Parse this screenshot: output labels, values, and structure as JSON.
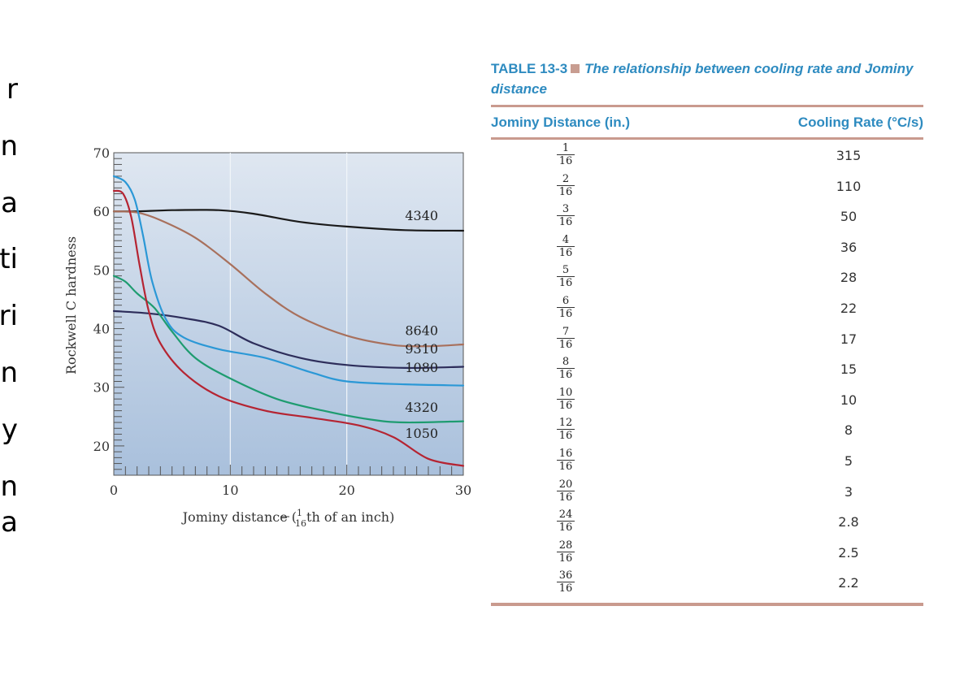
{
  "left_text_fragments": [
    "r",
    "n",
    "a",
    "ti",
    "ri",
    "n",
    "y",
    "n",
    "a"
  ],
  "chart_data": {
    "type": "line",
    "xlabel_prefix": "Jominy distance (",
    "xlabel_frac_num": "1",
    "xlabel_frac_den": "16",
    "xlabel_suffix": "th of an inch)",
    "ylabel": "Rockwell C hardness",
    "xlim": [
      0,
      30
    ],
    "ylim": [
      15,
      70
    ],
    "xticks": [
      0,
      10,
      20,
      30
    ],
    "yticks": [
      20,
      30,
      40,
      50,
      60,
      70
    ],
    "grid": true,
    "series": [
      {
        "name": "4340",
        "color": "#1a1a1a",
        "x": [
          0,
          2,
          5,
          9,
          12,
          16,
          20,
          25,
          30
        ],
        "y": [
          60,
          60,
          60.2,
          60.2,
          59.6,
          58.2,
          57.4,
          56.8,
          56.7
        ]
      },
      {
        "name": "8640",
        "color": "#a8705c",
        "x": [
          0,
          2,
          4,
          7,
          10,
          13,
          16,
          20,
          24,
          27,
          30
        ],
        "y": [
          60,
          59.8,
          58.5,
          55.5,
          51,
          46,
          42,
          38.8,
          37.2,
          37,
          37.3
        ]
      },
      {
        "name": "9310",
        "color": "#2d2d5a",
        "x": [
          0,
          3,
          6,
          9,
          12,
          16,
          20,
          25,
          30
        ],
        "y": [
          43,
          42.6,
          41.8,
          40.5,
          37.5,
          35,
          33.8,
          33.3,
          33.5
        ]
      },
      {
        "name": "1080",
        "color": "#2b98d6",
        "x": [
          0,
          1,
          1.8,
          2.5,
          3.3,
          4.5,
          6,
          9,
          13,
          17,
          20,
          25,
          30
        ],
        "y": [
          66,
          65,
          62,
          56,
          48,
          41.5,
          38.5,
          36.5,
          35,
          32.5,
          31,
          30.5,
          30.3
        ]
      },
      {
        "name": "4320",
        "color": "#1e9c70",
        "x": [
          0,
          1,
          2,
          3.5,
          5,
          7,
          10,
          14,
          18,
          22,
          25,
          30
        ],
        "y": [
          49,
          48,
          46,
          43.5,
          39.5,
          35,
          31.5,
          28,
          26,
          24.5,
          24,
          24.2
        ]
      },
      {
        "name": "1050",
        "color": "#b52432",
        "x": [
          0,
          0.8,
          1.5,
          2.2,
          3,
          4,
          6,
          9,
          13,
          17,
          21,
          24,
          27,
          30
        ],
        "y": [
          63.5,
          63,
          59,
          51,
          43,
          37.5,
          32.5,
          28.5,
          26,
          24.8,
          23.5,
          21.5,
          17.8,
          16.6
        ]
      }
    ],
    "annotations": [
      {
        "text": "4340",
        "x": 25,
        "y": 58.5
      },
      {
        "text": "8640",
        "x": 25,
        "y": 38.9
      },
      {
        "text": "9310",
        "x": 25,
        "y": 35.8
      },
      {
        "text": "1080",
        "x": 25,
        "y": 32.6
      },
      {
        "text": "4320",
        "x": 25,
        "y": 25.8
      },
      {
        "text": "1050",
        "x": 25,
        "y": 21.4
      }
    ]
  },
  "table": {
    "caption_id": "TABLE 13-3",
    "caption_title": "The relationship between cooling rate and Jominy distance",
    "headers": [
      "Jominy Distance (in.)",
      "Cooling Rate (°C/s)"
    ],
    "rows": [
      {
        "num": "1",
        "den": "16",
        "rate": "315"
      },
      {
        "num": "2",
        "den": "16",
        "rate": "110"
      },
      {
        "num": "3",
        "den": "16",
        "rate": "50"
      },
      {
        "num": "4",
        "den": "16",
        "rate": "36"
      },
      {
        "num": "5",
        "den": "16",
        "rate": "28"
      },
      {
        "num": "6",
        "den": "16",
        "rate": "22"
      },
      {
        "num": "7",
        "den": "16",
        "rate": "17"
      },
      {
        "num": "8",
        "den": "16",
        "rate": "15"
      },
      {
        "num": "10",
        "den": "16",
        "rate": "10"
      },
      {
        "num": "12",
        "den": "16",
        "rate": "8"
      },
      {
        "num": "16",
        "den": "16",
        "rate": "5"
      },
      {
        "num": "20",
        "den": "16",
        "rate": "3"
      },
      {
        "num": "24",
        "den": "16",
        "rate": "2.8"
      },
      {
        "num": "28",
        "den": "16",
        "rate": "2.5"
      },
      {
        "num": "36",
        "den": "16",
        "rate": "2.2"
      }
    ]
  }
}
